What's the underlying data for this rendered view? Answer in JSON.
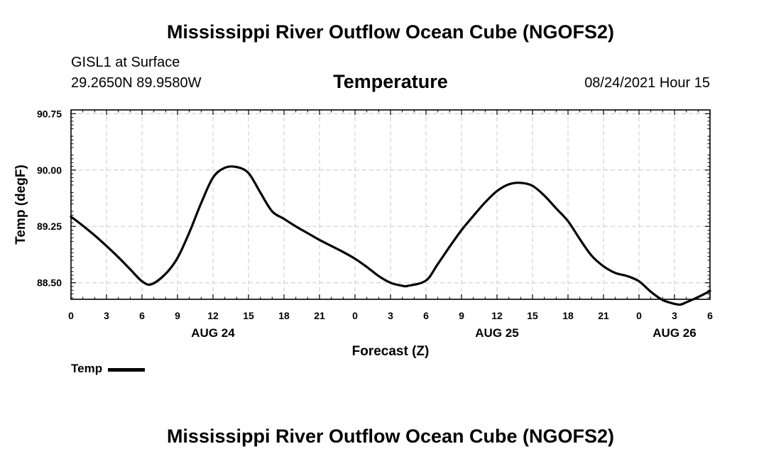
{
  "page": {
    "title": "Mississippi River Outflow Ocean Cube (NGOFS2)",
    "bottom_title": "Mississippi River Outflow Ocean Cube (NGOFS2)",
    "station": "GISL1 at Surface",
    "coordinates": "29.2650N  89.9580W",
    "parameter": "Temperature",
    "datetime": "08/24/2021 Hour 15"
  },
  "legend": {
    "label": "Temp"
  },
  "chart_data": {
    "type": "line",
    "title": "Temperature",
    "xlabel": "Forecast (Z)",
    "ylabel": "Temp (degF)",
    "xlim": [
      0,
      54
    ],
    "ylim": [
      88.28,
      90.8
    ],
    "yticks": [
      88.5,
      89.25,
      90.0,
      90.75
    ],
    "ytick_labels": [
      "88.50",
      "89.25",
      "90.00",
      "90.75"
    ],
    "grid": true,
    "xticks": [
      0,
      3,
      6,
      9,
      12,
      15,
      18,
      21,
      24,
      27,
      30,
      33,
      36,
      39,
      42,
      45,
      48,
      51,
      54
    ],
    "xtick_labels": [
      "0",
      "3",
      "6",
      "9",
      "12",
      "15",
      "18",
      "21",
      "0",
      "3",
      "6",
      "9",
      "12",
      "15",
      "18",
      "21",
      "0",
      "3",
      "6"
    ],
    "day_labels": [
      {
        "x": 12,
        "label": "AUG 24"
      },
      {
        "x": 36,
        "label": "AUG 25"
      },
      {
        "x": 51,
        "label": "AUG 26"
      }
    ],
    "series": [
      {
        "name": "Temp",
        "color": "#000000",
        "x": [
          0,
          1,
          2,
          3,
          4,
          5,
          6,
          6.8,
          8,
          9,
          10,
          11,
          12,
          13,
          14,
          15,
          16,
          17,
          18,
          19,
          20,
          21,
          22,
          23,
          24,
          25,
          26,
          27,
          28,
          28.5,
          30,
          31,
          32,
          33,
          34,
          35,
          36,
          37,
          38,
          39,
          40,
          41,
          42,
          43,
          44,
          45,
          46,
          47,
          48,
          49,
          50,
          51,
          51.5,
          52,
          53,
          54
        ],
        "values": [
          89.38,
          89.26,
          89.13,
          88.99,
          88.84,
          88.68,
          88.52,
          88.48,
          88.62,
          88.83,
          89.17,
          89.56,
          89.9,
          90.03,
          90.04,
          89.96,
          89.7,
          89.45,
          89.35,
          89.25,
          89.16,
          89.07,
          88.99,
          88.91,
          88.82,
          88.71,
          88.59,
          88.5,
          88.46,
          88.46,
          88.53,
          88.75,
          88.98,
          89.2,
          89.39,
          89.57,
          89.72,
          89.81,
          89.83,
          89.79,
          89.66,
          89.49,
          89.32,
          89.08,
          88.86,
          88.72,
          88.63,
          88.59,
          88.52,
          88.38,
          88.27,
          88.22,
          88.21,
          88.24,
          88.31,
          88.39
        ]
      }
    ]
  }
}
